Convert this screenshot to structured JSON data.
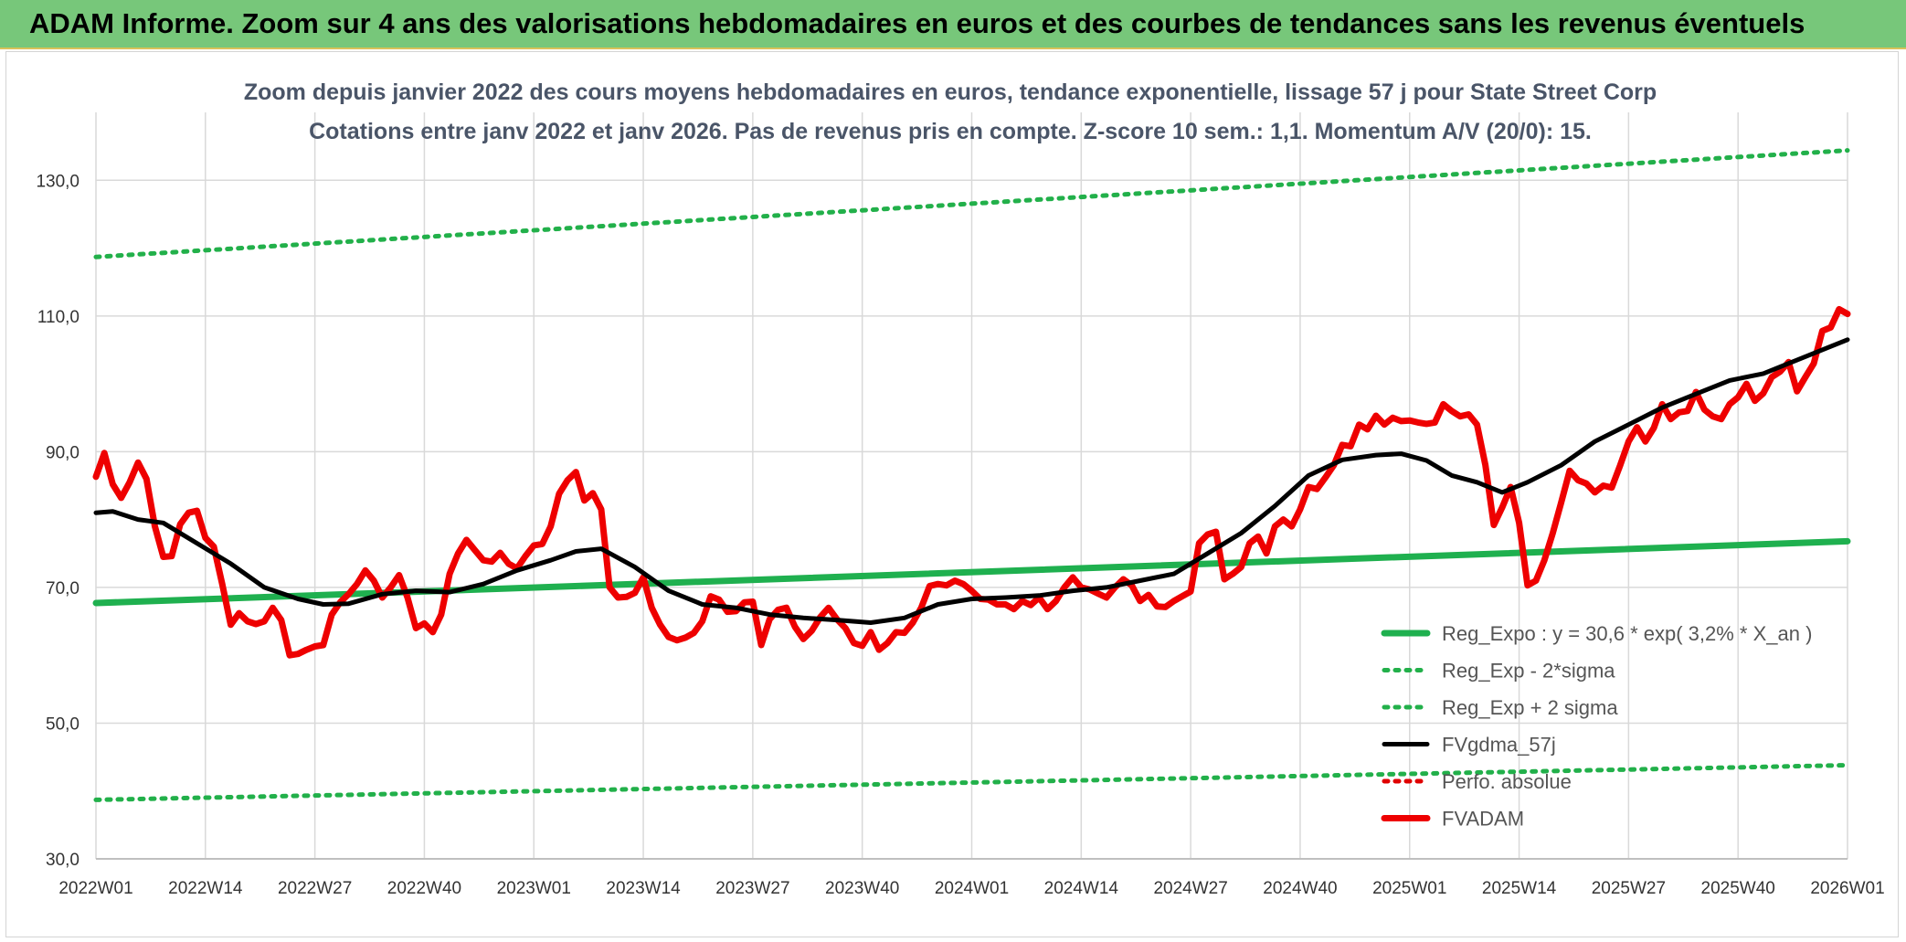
{
  "banner": {
    "title": "ADAM Informe. Zoom sur 4 ans des valorisations hebdomadaires en euros et des courbes de tendances sans les revenus éventuels"
  },
  "colors": {
    "banner_bg": "#77c77a",
    "reg_expo": "#1fb04f",
    "sigma_bands": "#22b04a",
    "fvgdma": "#000000",
    "perfo": "#e00000",
    "fvadam": "#ee0000"
  },
  "chart_data": {
    "type": "line",
    "title_line1": "Zoom depuis janvier 2022 des cours moyens hebdomadaires en euros, tendance exponentielle, lissage 57 j pour State Street Corp",
    "title_line2": "Cotations entre janv 2022 et janv 2026. Pas de revenus pris en compte. Z-score 10 sem.: 1,1. Momentum A/V (20/0): 15.",
    "xlabel": "",
    "ylabel": "",
    "ylim": [
      30,
      140
    ],
    "yticks": [
      30,
      50,
      70,
      90,
      110,
      130
    ],
    "ytick_labels": [
      "30,0",
      "50,0",
      "70,0",
      "90,0",
      "110,0",
      "130,0"
    ],
    "xlim": [
      0,
      208
    ],
    "xticks": [
      0,
      13,
      26,
      39,
      52,
      65,
      78,
      91,
      104,
      117,
      130,
      143,
      156,
      169,
      182,
      195,
      208
    ],
    "xtick_labels": [
      "2022W01",
      "2022W14",
      "2022W27",
      "2022W40",
      "2023W01",
      "2023W14",
      "2023W27",
      "2023W40",
      "2024W01",
      "2024W14",
      "2024W27",
      "2024W40",
      "2025W01",
      "2025W14",
      "2025W27",
      "2025W40",
      "2026W01"
    ],
    "grid": true,
    "legend_position": "bottom-right",
    "series": [
      {
        "name": "Reg_Expo : y = 30,6 * exp( 3,2% *  X_an )",
        "style": "solid-thick",
        "color": "#1fb04f",
        "x": [
          0,
          208
        ],
        "values": [
          67.7,
          76.8
        ]
      },
      {
        "name": "Reg_Exp - 2*sigma",
        "style": "dotted",
        "color": "#22b04a",
        "x": [
          0,
          208
        ],
        "values": [
          38.7,
          43.8
        ]
      },
      {
        "name": "Reg_Exp + 2 sigma",
        "style": "dotted",
        "color": "#22b04a",
        "x": [
          0,
          208
        ],
        "values": [
          118.7,
          134.4
        ]
      },
      {
        "name": "FVgdma_57j",
        "style": "solid",
        "color": "#000000",
        "x": [
          0,
          2,
          5,
          8,
          12,
          16,
          20,
          24,
          27,
          30,
          34,
          38,
          42,
          46,
          50,
          54,
          57,
          60,
          64,
          68,
          72,
          76,
          80,
          84,
          88,
          92,
          96,
          100,
          104,
          108,
          112,
          116,
          120,
          124,
          128,
          132,
          136,
          140,
          144,
          148,
          152,
          155,
          158,
          161,
          164,
          167,
          170,
          174,
          178,
          182,
          186,
          190,
          194,
          198,
          202,
          206,
          208
        ],
        "values": [
          81.0,
          81.2,
          80.0,
          79.5,
          76.5,
          73.5,
          70.0,
          68.3,
          67.5,
          67.6,
          69.0,
          69.5,
          69.3,
          70.5,
          72.5,
          74.0,
          75.3,
          75.7,
          73.0,
          69.5,
          67.5,
          67.0,
          66.0,
          65.5,
          65.2,
          64.8,
          65.5,
          67.5,
          68.3,
          68.5,
          68.8,
          69.5,
          70.0,
          71.0,
          72.0,
          75.0,
          78.0,
          82.0,
          86.5,
          88.8,
          89.5,
          89.7,
          88.7,
          86.5,
          85.5,
          84.0,
          85.5,
          88.0,
          91.5,
          94.0,
          96.5,
          98.5,
          100.5,
          101.5,
          103.5,
          105.5,
          106.5
        ]
      },
      {
        "name": "Perfo. absolue",
        "style": "dotted",
        "color": "#e00000",
        "x": [],
        "values": []
      },
      {
        "name": "FVADAM",
        "style": "solid-thick",
        "color": "#ee0000",
        "x": [
          0,
          1,
          2,
          3,
          4,
          5,
          6,
          7,
          8,
          9,
          10,
          11,
          12,
          13,
          14,
          15,
          16,
          17,
          18,
          19,
          20,
          21,
          22,
          23,
          24,
          25,
          26,
          27,
          28,
          29,
          30,
          31,
          32,
          33,
          34,
          35,
          36,
          37,
          38,
          39,
          40,
          41,
          42,
          43,
          44,
          45,
          46,
          47,
          48,
          49,
          50,
          51,
          52,
          53,
          54,
          55,
          56,
          57,
          58,
          59,
          60,
          61,
          62,
          63,
          64,
          65,
          66,
          67,
          68,
          69,
          70,
          71,
          72,
          73,
          74,
          75,
          76,
          77,
          78,
          79,
          80,
          81,
          82,
          83,
          84,
          85,
          86,
          87,
          88,
          89,
          90,
          91,
          92,
          93,
          94,
          95,
          96,
          97,
          98,
          99,
          100,
          101,
          102,
          103,
          104,
          105,
          106,
          107,
          108,
          109,
          110,
          111,
          112,
          113,
          114,
          115,
          116,
          117,
          118,
          119,
          120,
          121,
          122,
          123,
          124,
          125,
          126,
          127,
          128,
          129,
          130,
          131,
          132,
          133,
          134,
          135,
          136,
          137,
          138,
          139,
          140,
          141,
          142,
          143,
          144,
          145,
          146,
          147,
          148,
          149,
          150,
          151,
          152,
          153,
          154,
          155,
          156,
          157,
          158,
          159,
          160,
          161,
          162,
          163,
          164,
          165,
          166,
          167,
          168,
          169,
          170,
          171,
          172,
          173,
          174,
          175,
          176,
          177,
          178,
          179,
          180,
          181,
          182,
          183,
          184,
          185,
          186,
          187,
          188,
          189,
          190,
          191,
          192,
          193,
          194,
          195,
          196,
          197,
          198,
          199,
          200,
          201,
          202,
          203,
          204,
          205,
          206,
          207,
          208
        ],
        "values": [
          86.3,
          89.8,
          85.2,
          83.2,
          85.5,
          88.4,
          86.0,
          79.0,
          74.5,
          74.6,
          79.3,
          81.0,
          81.3,
          77.3,
          76.0,
          70.5,
          64.5,
          66.2,
          65.0,
          64.6,
          65.0,
          67.0,
          65.2,
          60.0,
          60.2,
          60.8,
          61.3,
          61.5,
          66.0,
          67.8,
          69.0,
          70.5,
          72.5,
          71.0,
          68.5,
          70.0,
          71.8,
          68.5,
          64.0,
          64.7,
          63.4,
          66.0,
          72.0,
          75.0,
          77.0,
          75.5,
          74.0,
          73.8,
          75.1,
          73.5,
          72.8,
          74.6,
          76.2,
          76.4,
          79.0,
          83.8,
          85.8,
          87.0,
          82.8,
          83.9,
          81.5,
          70.0,
          68.5,
          68.6,
          69.2,
          71.5,
          67.0,
          64.5,
          62.7,
          62.2,
          62.6,
          63.3,
          65.0,
          68.7,
          68.2,
          66.4,
          66.5,
          67.8,
          67.9,
          61.5,
          65.3,
          66.7,
          67.0,
          64.2,
          62.4,
          63.6,
          65.6,
          67.0,
          65.3,
          64.0,
          61.8,
          61.4,
          63.4,
          60.8,
          61.8,
          63.4,
          63.3,
          64.8,
          67.0,
          70.2,
          70.5,
          70.3,
          71.0,
          70.5,
          69.5,
          68.3,
          68.2,
          67.5,
          67.5,
          66.8,
          68.0,
          67.4,
          68.5,
          66.8,
          68.0,
          70.0,
          71.5,
          70.0,
          69.7,
          69.1,
          68.5,
          70.0,
          71.2,
          70.3,
          68.0,
          68.9,
          67.2,
          67.1,
          68.0,
          68.7,
          69.4,
          76.5,
          77.8,
          78.2,
          71.2,
          72.0,
          73.0,
          76.5,
          77.5,
          75.0,
          79.0,
          80.0,
          79.0,
          81.5,
          84.8,
          84.5,
          86.2,
          88.0,
          91.0,
          90.8,
          94.0,
          93.3,
          95.3,
          94.0,
          95.0,
          94.5,
          94.6,
          94.3,
          94.1,
          94.3,
          97.0,
          96.0,
          95.2,
          95.5,
          94.0,
          88.0,
          79.2,
          81.8,
          84.8,
          79.5,
          70.3,
          71.0,
          74.0,
          78.0,
          82.5,
          87.2,
          85.8,
          85.3,
          84.0,
          85.0,
          84.7,
          88.0,
          91.5,
          93.6,
          91.5,
          93.5,
          97.0,
          94.8,
          95.8,
          96.0,
          98.8,
          96.2,
          95.2,
          94.8,
          97.0,
          98.0,
          100.0,
          97.5,
          98.6,
          101.0,
          101.8,
          103.2,
          98.9,
          101.0,
          103.0,
          107.8,
          108.3,
          111.0,
          110.3
        ]
      }
    ]
  }
}
